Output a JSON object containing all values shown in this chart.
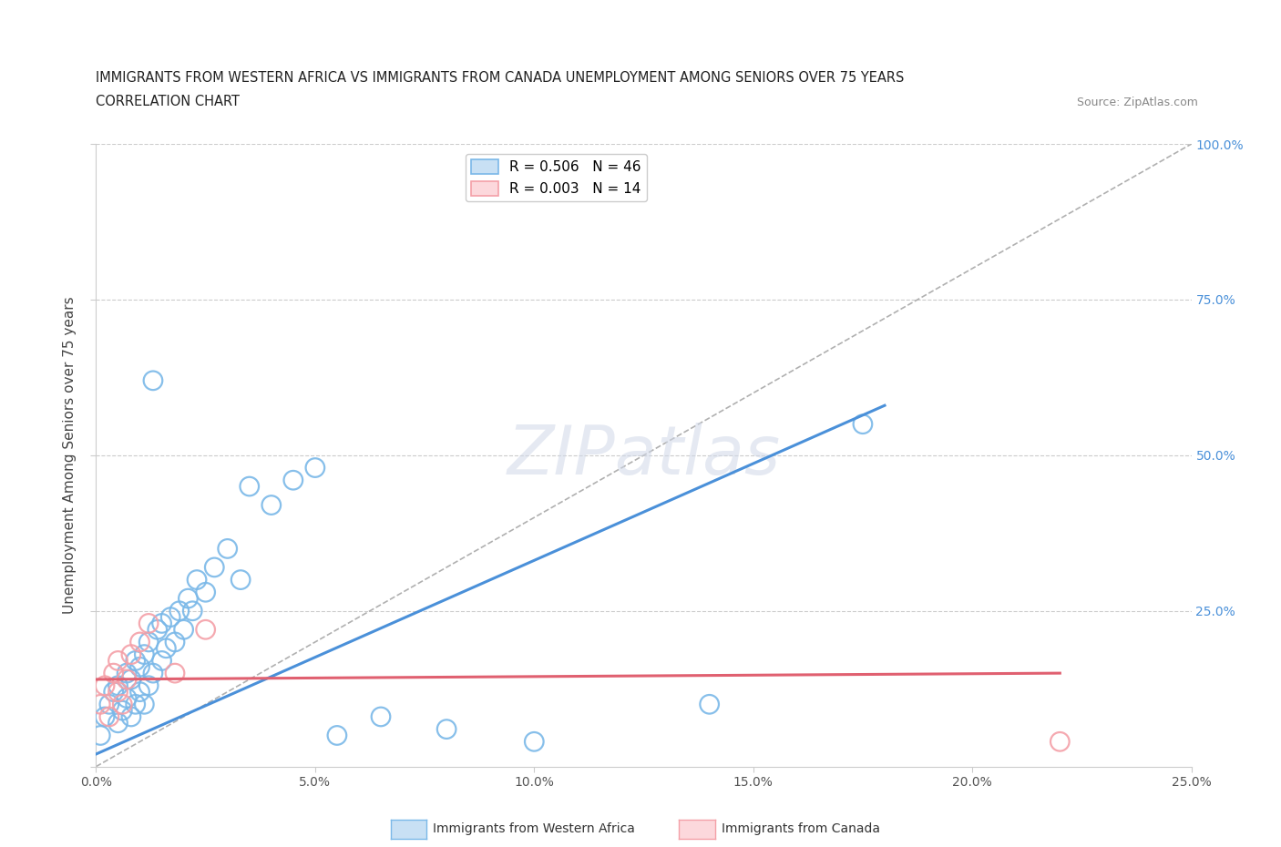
{
  "title_line1": "IMMIGRANTS FROM WESTERN AFRICA VS IMMIGRANTS FROM CANADA UNEMPLOYMENT AMONG SENIORS OVER 75 YEARS",
  "title_line2": "CORRELATION CHART",
  "source": "Source: ZipAtlas.com",
  "ylabel": "Unemployment Among Seniors over 75 years",
  "xlim": [
    0.0,
    0.25
  ],
  "ylim": [
    0.0,
    1.0
  ],
  "xticks": [
    0.0,
    0.05,
    0.1,
    0.15,
    0.2,
    0.25
  ],
  "legend_r1": "R = 0.506",
  "legend_n1": "N = 46",
  "legend_r2": "R = 0.003",
  "legend_n2": "N = 14",
  "color_blue": "#7ab8e8",
  "color_pink": "#f4a0a8",
  "color_blue_line": "#4a90d9",
  "color_pink_line": "#e06070",
  "color_dash": "#b0b0b0",
  "watermark": "ZIPatlas",
  "wa_x": [
    0.001,
    0.002,
    0.003,
    0.004,
    0.005,
    0.005,
    0.006,
    0.007,
    0.007,
    0.008,
    0.008,
    0.009,
    0.009,
    0.01,
    0.01,
    0.011,
    0.011,
    0.012,
    0.012,
    0.013,
    0.013,
    0.014,
    0.015,
    0.015,
    0.016,
    0.017,
    0.018,
    0.019,
    0.02,
    0.021,
    0.022,
    0.023,
    0.025,
    0.027,
    0.03,
    0.033,
    0.035,
    0.04,
    0.045,
    0.05,
    0.055,
    0.065,
    0.08,
    0.1,
    0.14,
    0.175
  ],
  "wa_y": [
    0.05,
    0.08,
    0.1,
    0.12,
    0.07,
    0.13,
    0.09,
    0.11,
    0.15,
    0.08,
    0.14,
    0.1,
    0.17,
    0.12,
    0.16,
    0.1,
    0.18,
    0.13,
    0.2,
    0.15,
    0.62,
    0.22,
    0.17,
    0.23,
    0.19,
    0.24,
    0.2,
    0.25,
    0.22,
    0.27,
    0.25,
    0.3,
    0.28,
    0.32,
    0.35,
    0.3,
    0.45,
    0.42,
    0.46,
    0.48,
    0.05,
    0.08,
    0.06,
    0.04,
    0.1,
    0.55
  ],
  "ca_x": [
    0.001,
    0.002,
    0.003,
    0.004,
    0.005,
    0.005,
    0.006,
    0.007,
    0.008,
    0.01,
    0.012,
    0.018,
    0.025,
    0.22
  ],
  "ca_y": [
    0.1,
    0.13,
    0.08,
    0.15,
    0.12,
    0.17,
    0.1,
    0.14,
    0.18,
    0.2,
    0.23,
    0.15,
    0.22,
    0.04
  ],
  "wa_trendline": [
    0.0,
    0.18,
    0.02,
    0.58
  ],
  "ca_trendline": [
    0.0,
    0.22,
    0.14,
    0.15
  ],
  "dash_line": [
    0.0,
    0.0,
    0.25,
    1.0
  ]
}
